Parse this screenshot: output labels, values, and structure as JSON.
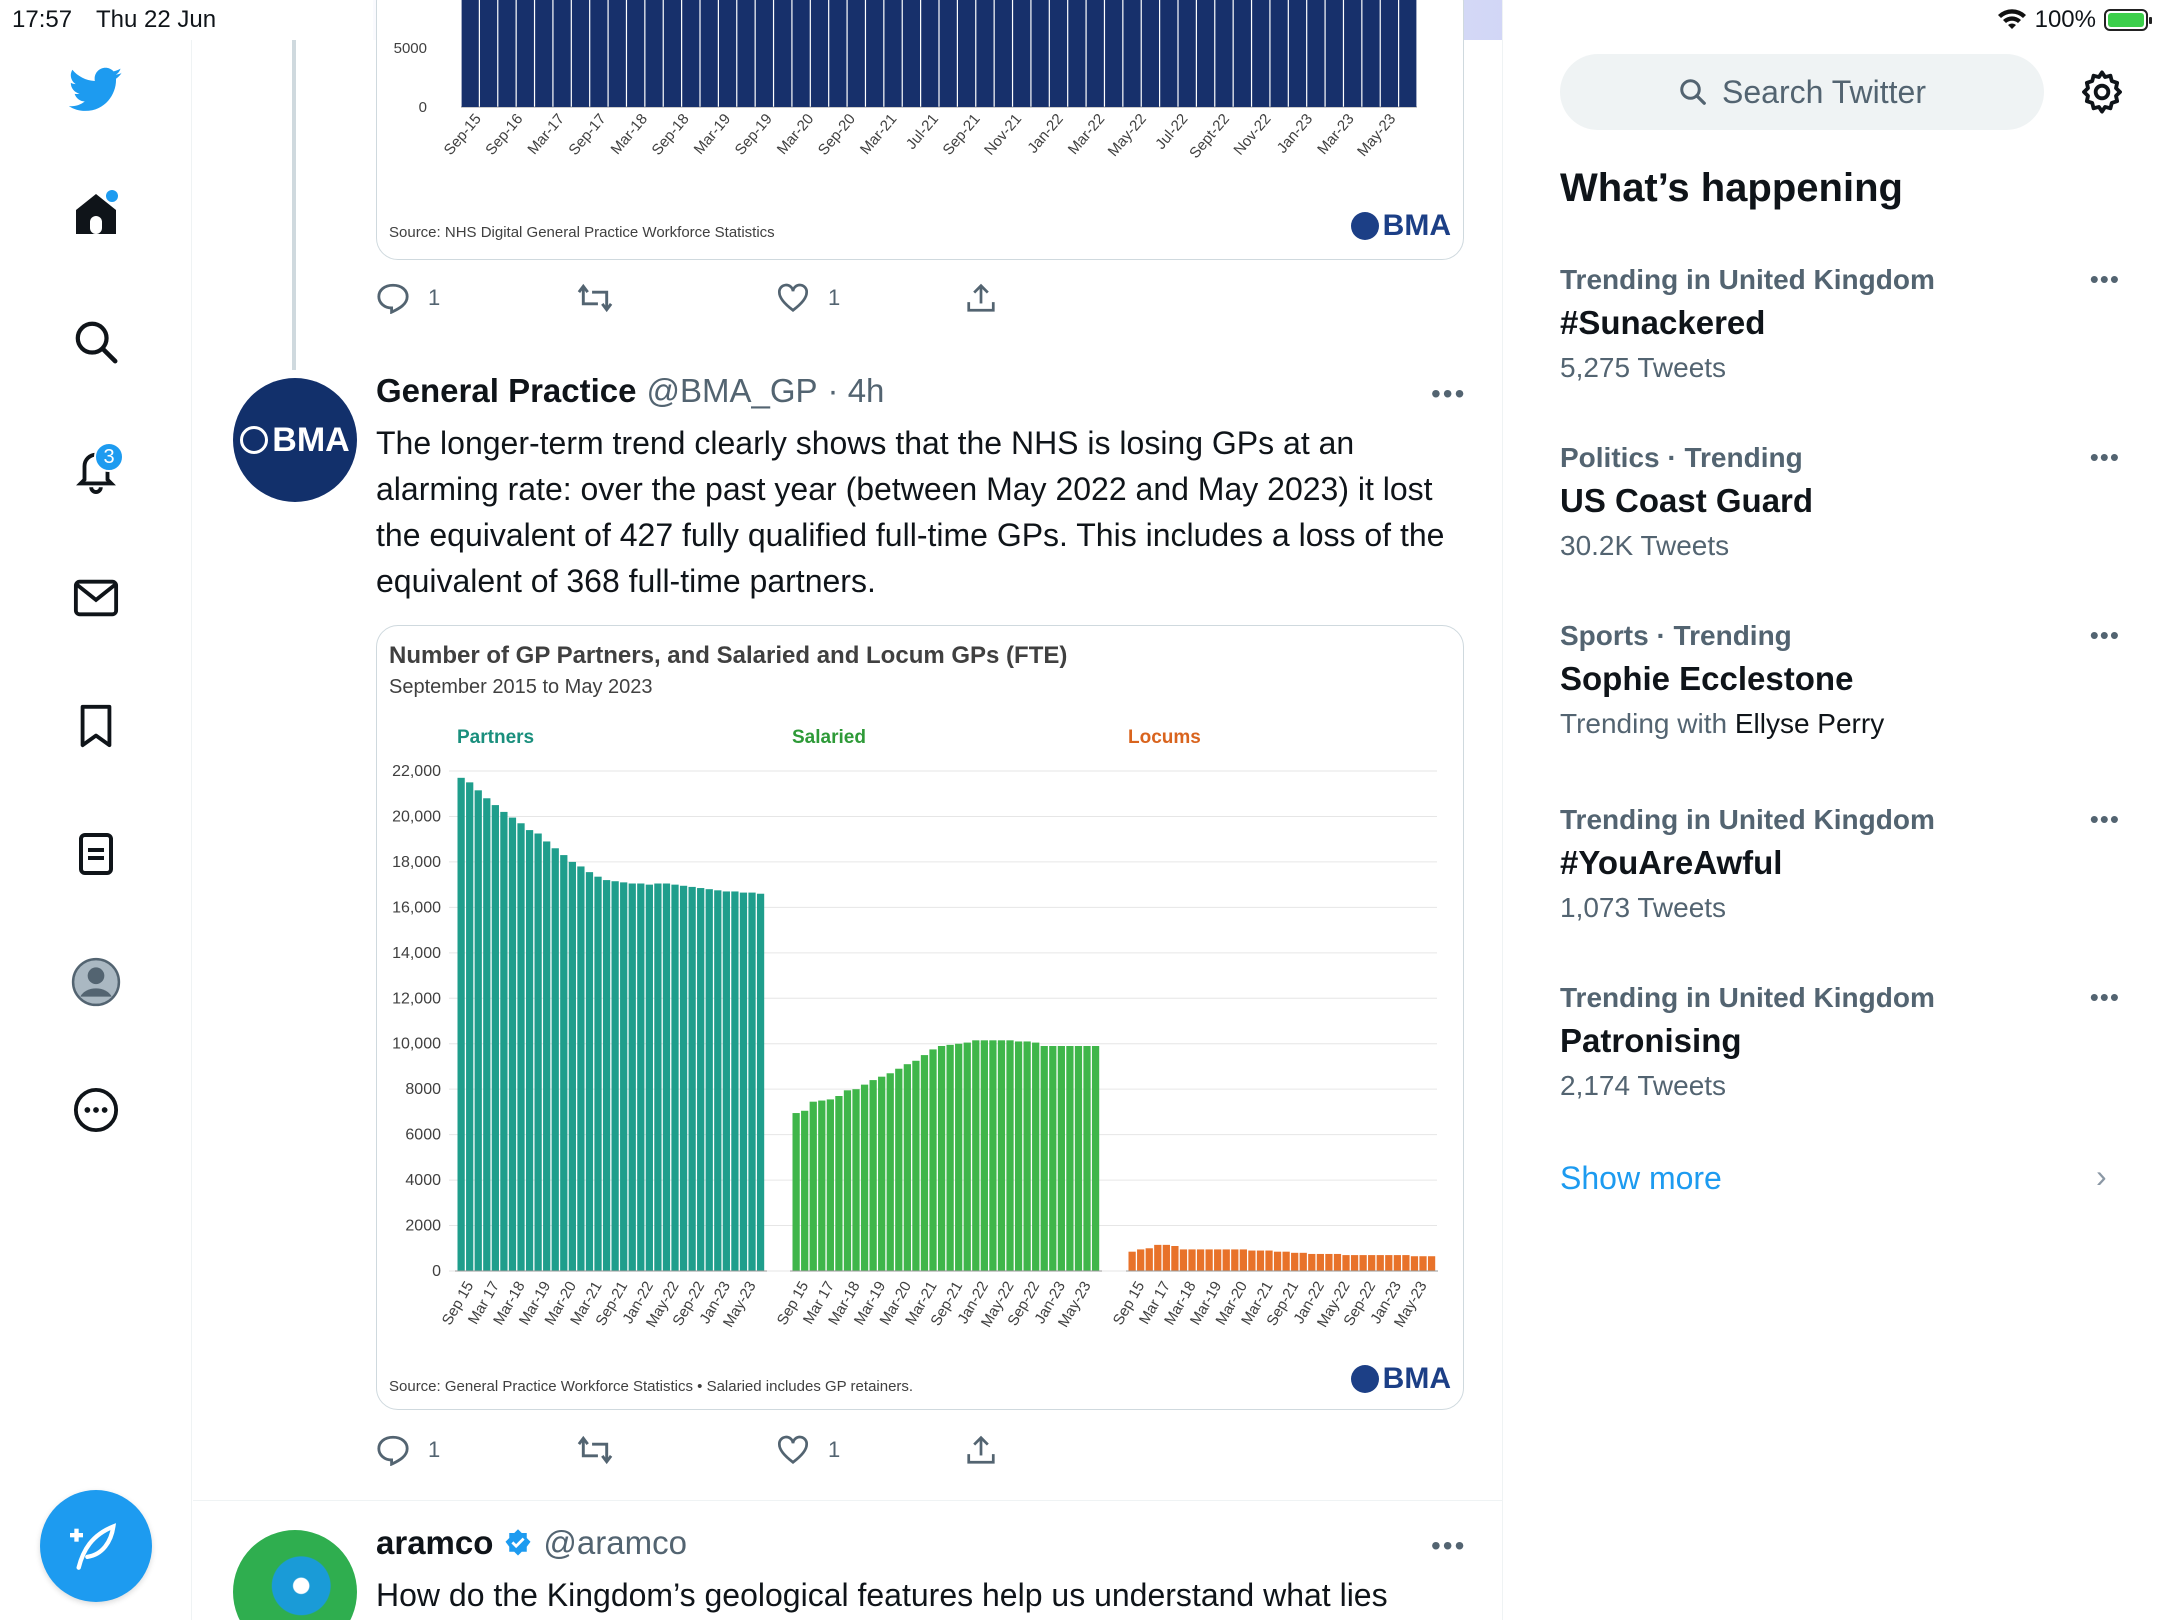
{
  "status": {
    "time": "17:57",
    "date": "Thu 22 Jun",
    "battery": "100%"
  },
  "nav": {
    "notifications_count": "3"
  },
  "top_chart": {
    "source": "Source: NHS Digital General Practice Workforce Statistics",
    "logo": "BMA",
    "y_ticks": [
      "5000",
      "0"
    ],
    "x_labels": [
      "Sep-15",
      "Sep-16",
      "Mar-17",
      "Sep-17",
      "Mar-18",
      "Sep-18",
      "Mar-19",
      "Sep-19",
      "Mar-20",
      "Sep-20",
      "Mar-21",
      "Jul-21",
      "Sep-21",
      "Nov-21",
      "Jan-22",
      "Mar-22",
      "May-22",
      "Jul-22",
      "Sept-22",
      "Nov-22",
      "Jan-23",
      "Mar-23",
      "May-23"
    ],
    "bar_count": 52,
    "bar_color": "#17306b"
  },
  "top_actions": {
    "replies": "1",
    "likes": "1"
  },
  "tweet": {
    "name": "General Practice",
    "handle": "@BMA_GP",
    "time": "· 4h",
    "avatar_text": "BMA",
    "text": "The longer-term trend clearly shows that the NHS is losing GPs at an alarming rate: over the past year (between May 2022 and May 2023) it lost the equivalent of 427 fully qualified full-time GPs. This includes a loss of the equivalent of 368 full-time partners.",
    "replies": "1",
    "likes": "1"
  },
  "chart_data": {
    "type": "bar",
    "title": "Number of GP Partners, and Salaried and Locum GPs (FTE)",
    "subtitle": "September 2015 to May 2023",
    "source": "Source: General Practice Workforce Statistics • Salaried includes GP retainers.",
    "logo": "BMA",
    "ylim": [
      0,
      22000
    ],
    "y_ticks": [
      "22,000",
      "20,000",
      "18,000",
      "16,000",
      "14,000",
      "12,000",
      "10,000",
      "8000",
      "6000",
      "4000",
      "2000",
      "0"
    ],
    "x_labels": [
      "Sep 15",
      "Mar 17",
      "Mar-18",
      "Mar-19",
      "Mar-20",
      "Mar-21",
      "Sep-21",
      "Jan-22",
      "May-22",
      "Sep-22",
      "Jan-23",
      "May-23"
    ],
    "grid": true,
    "panels": [
      {
        "name": "Partners",
        "color": "#1f9e8c",
        "label_color": "#1a8f7d",
        "values": [
          21700,
          21500,
          21150,
          20800,
          20500,
          20200,
          19950,
          19700,
          19400,
          19250,
          18900,
          18600,
          18300,
          18000,
          17800,
          17550,
          17350,
          17200,
          17150,
          17100,
          17050,
          17050,
          17000,
          17050,
          17050,
          17000,
          16950,
          16900,
          16850,
          16800,
          16750,
          16700,
          16700,
          16650,
          16650,
          16600
        ]
      },
      {
        "name": "Salaried",
        "color": "#3fb64a",
        "label_color": "#2e9a38",
        "values": [
          6950,
          7050,
          7450,
          7500,
          7550,
          7700,
          7950,
          8000,
          8200,
          8400,
          8550,
          8700,
          8900,
          9100,
          9250,
          9500,
          9750,
          9900,
          9950,
          10000,
          10050,
          10150,
          10150,
          10150,
          10150,
          10150,
          10100,
          10100,
          10050,
          9900,
          9900,
          9900,
          9900,
          9900,
          9900,
          9900
        ]
      },
      {
        "name": "Locums",
        "color": "#e8722a",
        "label_color": "#d9641e",
        "values": [
          850,
          950,
          1000,
          1150,
          1150,
          1100,
          950,
          950,
          950,
          950,
          950,
          950,
          950,
          950,
          900,
          900,
          900,
          850,
          850,
          800,
          800,
          750,
          750,
          750,
          750,
          700,
          700,
          700,
          700,
          700,
          700,
          700,
          700,
          650,
          650,
          650
        ]
      }
    ]
  },
  "next_tweet": {
    "name": "aramco",
    "handle": "@aramco",
    "text": "How do the Kingdom’s geological features help us understand what lies"
  },
  "sidebar": {
    "search_placeholder": "Search Twitter",
    "title": "What’s happening",
    "trends": [
      {
        "context": "Trending in United Kingdom",
        "name": "#Sunackered",
        "count": "5,275 Tweets"
      },
      {
        "context": "Politics · Trending",
        "name": "US Coast Guard",
        "count": "30.2K Tweets"
      },
      {
        "context": "Sports · Trending",
        "name": "Sophie Ecclestone",
        "with_prefix": "Trending with ",
        "with_name": "Ellyse Perry"
      },
      {
        "context": "Trending in United Kingdom",
        "name": "#YouAreAwful",
        "count": "1,073 Tweets"
      },
      {
        "context": "Trending in United Kingdom",
        "name": "Patronising",
        "count": "2,174 Tweets"
      }
    ],
    "show_more": "Show more"
  }
}
